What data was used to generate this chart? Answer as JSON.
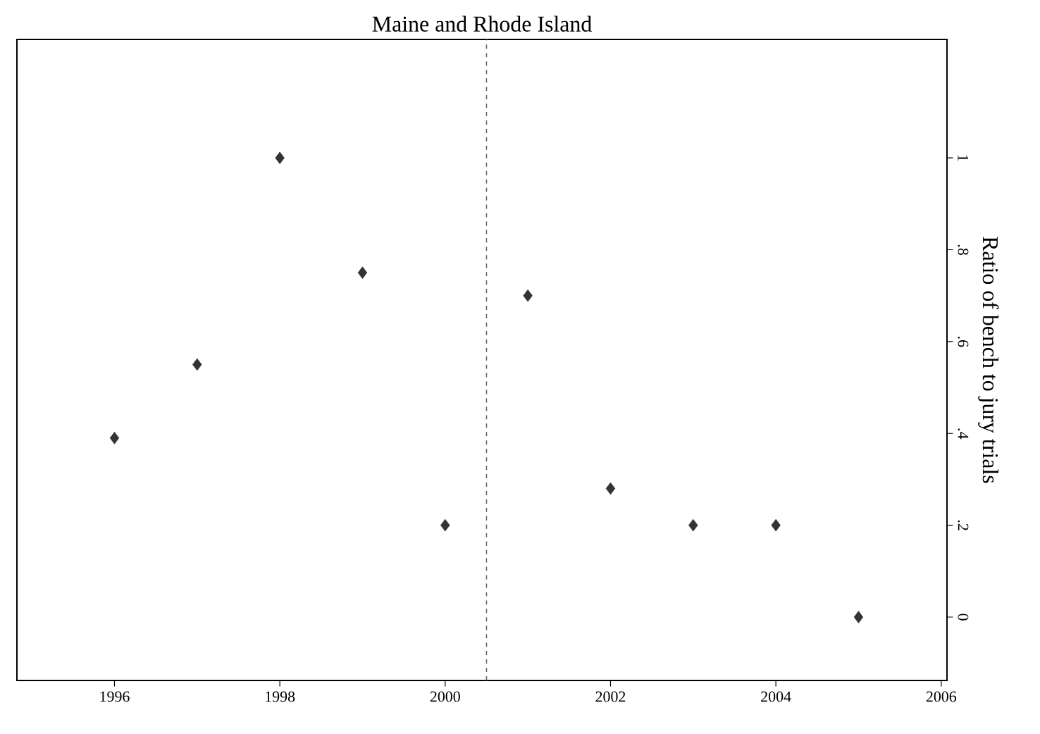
{
  "chart_data": {
    "type": "scatter",
    "title": "Maine and Rhode Island",
    "ylabel": "Ratio of bench to jury trials",
    "x": [
      1996,
      1997,
      1998,
      1999,
      2000,
      2001,
      2002,
      2003,
      2004,
      2005
    ],
    "values": [
      0.39,
      0.55,
      1.0,
      0.75,
      0.2,
      0.7,
      0.28,
      0.2,
      0.2,
      0
    ],
    "color": "#333333",
    "marker": "diamond",
    "xlim": [
      1994.82,
      2006.07
    ],
    "xticks": [
      1996,
      1998,
      2000,
      2002,
      2004,
      2006
    ],
    "ylim": [
      -0.138,
      1.258
    ],
    "yticks": [
      0,
      {
        "value": 0.2,
        "label": ".2"
      },
      {
        "value": 0.4,
        "label": ".4"
      },
      {
        "value": 0.6,
        "label": ".6"
      },
      {
        "value": 0.8,
        "label": ".8"
      },
      1
    ],
    "ref_lines": [
      {
        "axis": "x",
        "value": 2000.5,
        "line_style": "dashed",
        "color": "#666666"
      }
    ],
    "grid": false
  }
}
